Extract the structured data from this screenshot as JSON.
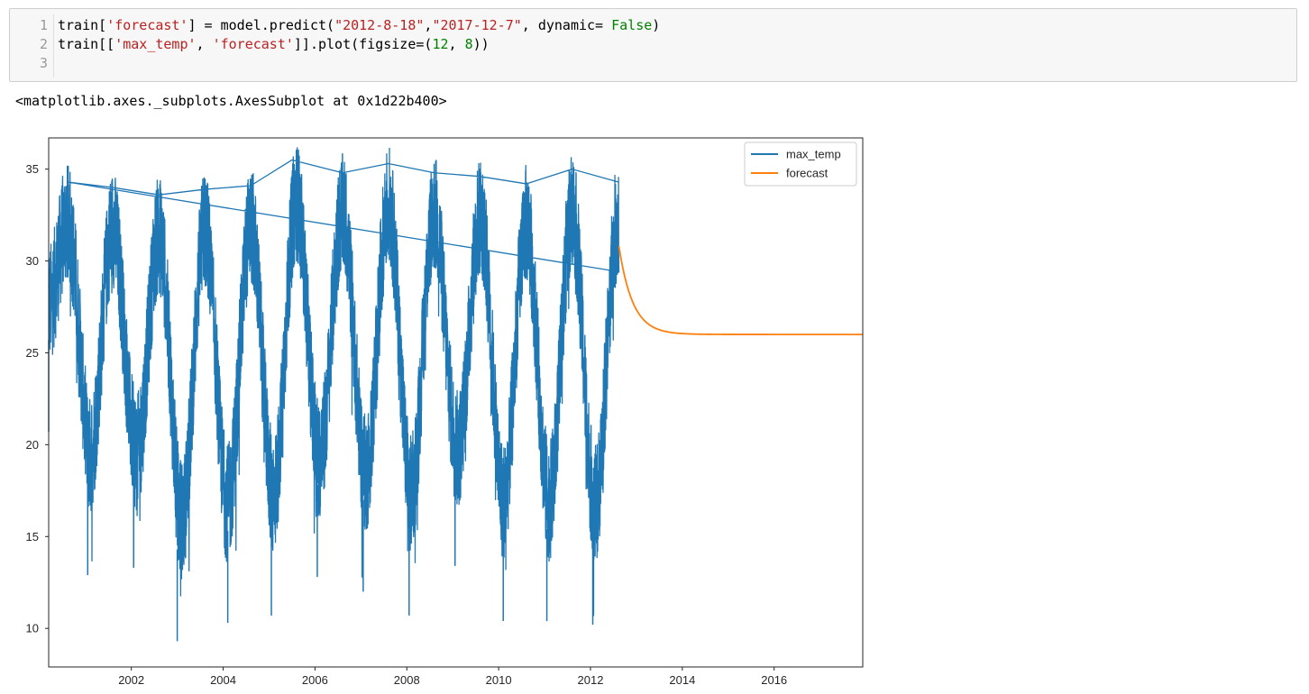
{
  "cell": {
    "lines": [
      {
        "number": "1",
        "tokens": [
          {
            "t": "train[",
            "c": ""
          },
          {
            "t": "'forecast'",
            "c": "str"
          },
          {
            "t": "] = model.predict(",
            "c": ""
          },
          {
            "t": "\"2012-8-18\"",
            "c": "str"
          },
          {
            "t": ",",
            "c": ""
          },
          {
            "t": "\"2017-12-7\"",
            "c": "str"
          },
          {
            "t": ", dynamic= ",
            "c": ""
          },
          {
            "t": "False",
            "c": "kw"
          },
          {
            "t": ")",
            "c": ""
          }
        ]
      },
      {
        "number": "2",
        "tokens": [
          {
            "t": "train[[",
            "c": ""
          },
          {
            "t": "'max_temp'",
            "c": "str"
          },
          {
            "t": ", ",
            "c": ""
          },
          {
            "t": "'forecast'",
            "c": "str"
          },
          {
            "t": "]].plot(figsize=(",
            "c": ""
          },
          {
            "t": "12",
            "c": "num"
          },
          {
            "t": ", ",
            "c": ""
          },
          {
            "t": "8",
            "c": "num"
          },
          {
            "t": "))",
            "c": ""
          }
        ]
      },
      {
        "number": "3",
        "tokens": []
      }
    ]
  },
  "output": {
    "repr": "<matplotlib.axes._subplots.AxesSubplot at 0x1d22b400>"
  },
  "colors": {
    "max_temp": "#1f77b4",
    "forecast": "#ff7f0e",
    "string": "#ba2121",
    "number": "#008000",
    "keyword": "#008000"
  },
  "chart_data": {
    "type": "line",
    "xlim": [
      2000.2,
      2017.93
    ],
    "ylim": [
      7.9,
      36.7
    ],
    "x_ticks": [
      "2002",
      "2004",
      "2006",
      "2008",
      "2010",
      "2012",
      "2014",
      "2016"
    ],
    "y_ticks": [
      "10",
      "15",
      "20",
      "25",
      "30",
      "35"
    ],
    "legend": {
      "placement": "top-right",
      "entries": [
        "max_temp",
        "forecast"
      ]
    },
    "series": [
      {
        "name": "max_temp",
        "color": "#1f77b4",
        "x_range": [
          2000.2,
          2012.62
        ],
        "seasonal_peaks": [
          {
            "x": 2000.6,
            "y": 34.3
          },
          {
            "x": 2001.6,
            "y": 34.0
          },
          {
            "x": 2002.6,
            "y": 33.6
          },
          {
            "x": 2003.6,
            "y": 33.9
          },
          {
            "x": 2004.6,
            "y": 34.1
          },
          {
            "x": 2005.5,
            "y": 35.5
          },
          {
            "x": 2006.6,
            "y": 34.8
          },
          {
            "x": 2007.6,
            "y": 35.3
          },
          {
            "x": 2008.6,
            "y": 34.8
          },
          {
            "x": 2009.6,
            "y": 34.6
          },
          {
            "x": 2010.6,
            "y": 34.2
          },
          {
            "x": 2011.6,
            "y": 35.0
          },
          {
            "x": 2012.6,
            "y": 34.3
          }
        ],
        "seasonal_troughs": [
          {
            "x": 2000.2,
            "y": 20.7
          },
          {
            "x": 2001.05,
            "y": 12.9
          },
          {
            "x": 2002.05,
            "y": 13.3
          },
          {
            "x": 2003.0,
            "y": 9.3
          },
          {
            "x": 2004.1,
            "y": 10.3
          },
          {
            "x": 2005.05,
            "y": 10.7
          },
          {
            "x": 2006.05,
            "y": 12.8
          },
          {
            "x": 2007.05,
            "y": 12.0
          },
          {
            "x": 2008.05,
            "y": 10.7
          },
          {
            "x": 2009.05,
            "y": 13.4
          },
          {
            "x": 2010.1,
            "y": 10.4
          },
          {
            "x": 2011.05,
            "y": 10.4
          },
          {
            "x": 2012.05,
            "y": 10.2
          }
        ]
      },
      {
        "name": "forecast",
        "color": "#ff7f0e",
        "x_range": [
          2012.62,
          2017.93
        ],
        "start_value": 30.8,
        "settled_value": 26.0,
        "settle_time_years": 0.3
      }
    ]
  }
}
